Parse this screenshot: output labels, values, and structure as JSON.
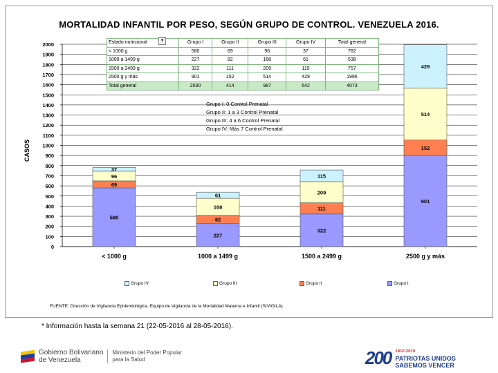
{
  "title": "MORTALIDAD INFANTIL POR PESO, SEGÚN GRUPO DE CONTROL. VENEZUELA 2016.",
  "chart_data": {
    "type": "bar",
    "stacked": true,
    "categories": [
      "< 1000 g",
      "1000 a 1499 g",
      "1500 a 2499 g",
      "2500 g y más"
    ],
    "series": [
      {
        "name": "Grupo I",
        "color": "#9999ff",
        "values": [
          580,
          227,
          322,
          901
        ]
      },
      {
        "name": "Grupo II",
        "color": "#ff7f50",
        "values": [
          69,
          82,
          111,
          152
        ]
      },
      {
        "name": "Grupo III",
        "color": "#ffffcc",
        "values": [
          96,
          168,
          209,
          514
        ]
      },
      {
        "name": "Grupo IV",
        "color": "#ccf2ff",
        "values": [
          37,
          61,
          115,
          429
        ]
      }
    ],
    "labels": [
      [
        "580",
        "69",
        "96",
        "37"
      ],
      [
        "227",
        "82",
        "168",
        "61"
      ],
      [
        "322",
        "111",
        "209",
        "115"
      ],
      [
        "901",
        "152",
        "514",
        "429"
      ]
    ],
    "ylabel": "CASOS",
    "ylim": [
      0,
      2000
    ],
    "yticks": [
      "0",
      "100",
      "200",
      "300",
      "400",
      "500",
      "600",
      "700",
      "800",
      "900",
      "1000",
      "1100",
      "1200",
      "1300",
      "1400",
      "1500",
      "1600",
      "1700",
      "1800",
      "1900",
      "2000"
    ],
    "legend": [
      "Grupo IV",
      "Grupo III",
      "Grupo II",
      "Grupo I"
    ],
    "legend_position": "bottom"
  },
  "data_table": {
    "header": [
      "Estado nutricional",
      "Grupo I",
      "Grupo II",
      "Grupo III",
      "Grupo IV",
      "Total general"
    ],
    "rows": [
      [
        "< 1000 g",
        "580",
        "69",
        "96",
        "37",
        "782"
      ],
      [
        "1000 a 1499 g",
        "227",
        "82",
        "168",
        "61",
        "538"
      ],
      [
        "1500 a 2499 g",
        "322",
        "111",
        "209",
        "115",
        "757"
      ],
      [
        "2500 g y más",
        "901",
        "152",
        "514",
        "429",
        "1996"
      ],
      [
        "Total general",
        "2030",
        "414",
        "987",
        "642",
        "4073"
      ]
    ]
  },
  "groups": [
    "Grupo I: 0 Control Prenatal",
    "Grupo II: 1 a 3 Control Prenatal",
    "Grupo III: 4 a 6 Control Prenatal",
    "Grupo IV: Más 7 Control Prenatal"
  ],
  "source": "FUENTE: Dirección de Vigilancia Epidemiológica. Equipo de Vigilancia de la Mortalidad Materna e Infantil (SIVIGILA)",
  "note": "* Información hasta la semana 21 (22-05-2016 al 28-05-2016).",
  "footer": {
    "gov_line1": "Gobierno Bolivariano",
    "gov_line2": "de Venezuela",
    "ministry_line1": "Ministerio del Poder Popular",
    "ministry_line2": "para la Salud",
    "anniv_years": "1810-2010",
    "anniv_line1": "PATRIOTAS UNIDOS",
    "anniv_line2": "SABEMOS VENCER",
    "anniv_logo": "200"
  },
  "colors": {
    "grid": "#000000",
    "table_border": "#7db77d",
    "total_row": "#c9e9c6"
  }
}
